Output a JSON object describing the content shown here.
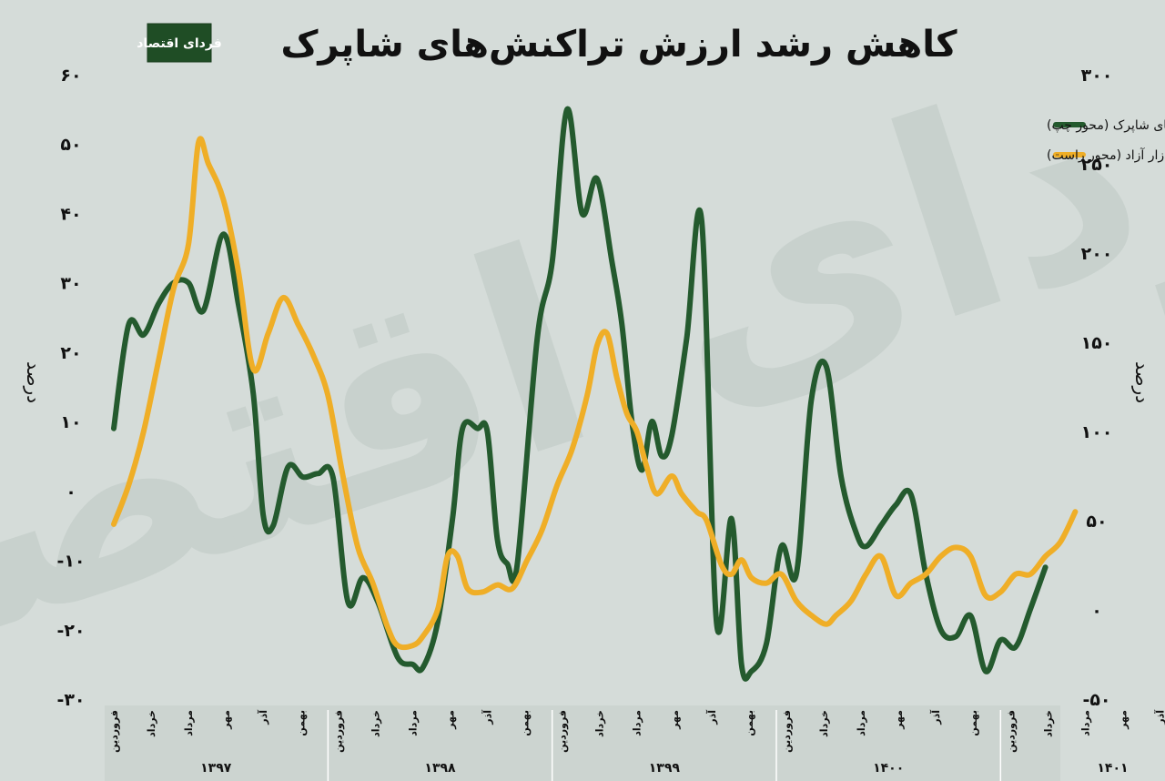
{
  "logo": {
    "text": "فردای اقتصاد"
  },
  "watermark": {
    "text": "فردای اقتصاد"
  },
  "chart_data": {
    "type": "line",
    "title": "کاهش رشد ارزش تراکنش‌های شاپرک",
    "ylabel_left": "درصد",
    "ylabel_right": "درصد",
    "left_axis": {
      "min": -30,
      "max": 60,
      "ticks": [
        60,
        50,
        40,
        30,
        20,
        10,
        0,
        -10,
        -20,
        -30
      ],
      "tick_labels": [
        "۶۰",
        "۵۰",
        "۴۰",
        "۳۰",
        "۲۰",
        "۱۰",
        "۰",
        "-۱۰",
        "-۲۰",
        "-۳۰"
      ]
    },
    "right_axis": {
      "min": -50,
      "max": 300,
      "ticks": [
        300,
        250,
        200,
        150,
        100,
        50,
        0,
        -50
      ],
      "tick_labels": [
        "۳۰۰",
        "۲۵۰",
        "۲۰۰",
        "۱۵۰",
        "۱۰۰",
        "۵۰",
        "۰",
        "-۵۰"
      ]
    },
    "x": [
      0,
      1,
      2,
      3,
      4,
      5,
      6,
      7,
      8,
      9,
      10,
      11,
      12,
      13,
      14,
      15,
      16,
      17,
      18,
      19,
      20,
      21,
      22,
      23,
      24,
      25,
      26,
      27,
      28,
      29,
      30,
      31,
      32,
      33,
      34,
      35,
      36,
      37,
      38,
      39,
      40,
      41,
      42,
      43,
      44,
      45,
      46,
      47,
      48,
      49,
      50,
      51,
      52,
      53,
      54,
      55,
      56,
      57,
      58,
      59,
      60,
      61,
      62,
      63,
      64,
      65,
      66,
      67,
      68,
      69,
      70,
      71,
      72,
      73,
      74,
      75,
      76,
      77,
      78,
      79,
      80,
      81,
      82,
      83,
      84,
      85,
      86,
      87,
      88,
      89,
      90,
      91,
      92,
      93,
      94,
      95,
      96,
      97,
      98,
      99,
      100,
      101,
      102,
      103,
      104,
      105,
      106,
      107,
      108,
      109,
      110,
      111,
      112,
      113,
      114,
      115,
      116,
      117,
      118,
      119,
      120,
      121,
      122,
      123,
      124,
      125,
      126,
      127,
      128,
      129,
      130,
      131,
      132,
      133,
      134,
      135,
      136,
      137,
      138,
      139,
      140,
      141,
      142,
      143,
      144,
      145,
      146,
      147,
      148,
      149,
      150,
      151,
      152,
      153,
      154,
      155,
      156,
      157,
      158,
      159,
      160,
      161,
      162,
      163,
      164,
      165,
      166,
      167,
      168,
      169,
      170,
      171,
      172,
      173,
      174,
      175,
      176,
      177,
      178,
      179,
      180,
      181,
      182,
      183,
      184,
      185,
      186,
      187,
      188,
      189,
      190,
      191,
      192,
      193,
      194,
      195,
      196,
      197,
      198,
      199,
      200,
      201,
      202,
      203,
      204,
      205,
      206,
      207,
      208,
      209,
      210,
      211,
      212,
      213,
      214,
      215,
      216,
      217,
      218,
      219
    ],
    "months": [
      {
        "label": "فروردین",
        "x": 0
      },
      {
        "label": "خرداد",
        "x": 7.5
      },
      {
        "label": "مرداد",
        "x": 15
      },
      {
        "label": "مهر",
        "x": 22.5
      },
      {
        "label": "آذر",
        "x": 30
      },
      {
        "label": "بهمن",
        "x": 37.5
      },
      {
        "label": "فروردین",
        "x": 45
      },
      {
        "label": "خرداد",
        "x": 52.5
      },
      {
        "label": "مرداد",
        "x": 60
      },
      {
        "label": "مهر",
        "x": 67.5
      },
      {
        "label": "آذر",
        "x": 75
      },
      {
        "label": "بهمن",
        "x": 82.5
      },
      {
        "label": "فروردین",
        "x": 90
      },
      {
        "label": "خرداد",
        "x": 97.5
      },
      {
        "label": "مرداد",
        "x": 105
      },
      {
        "label": "مهر",
        "x": 112.5
      },
      {
        "label": "آذر",
        "x": 120
      },
      {
        "label": "بهمن",
        "x": 127.5
      },
      {
        "label": "فروردین",
        "x": 135
      },
      {
        "label": "خرداد",
        "x": 142.5
      },
      {
        "label": "مرداد",
        "x": 150
      },
      {
        "label": "مهر",
        "x": 157.5
      },
      {
        "label": "آذر",
        "x": 165
      },
      {
        "label": "بهمن",
        "x": 172.5
      },
      {
        "label": "فروردین",
        "x": 180
      },
      {
        "label": "خرداد",
        "x": 187.5
      },
      {
        "label": "مرداد",
        "x": 195
      },
      {
        "label": "مهر",
        "x": 202.5
      },
      {
        "label": "آذر",
        "x": 210
      }
    ],
    "years": [
      {
        "label": "۱۳۹۷",
        "start": -2,
        "end": 43
      },
      {
        "label": "۱۳۹۸",
        "start": 43,
        "end": 88
      },
      {
        "label": "۱۳۹۹",
        "start": 88,
        "end": 133
      },
      {
        "label": "۱۴۰۰",
        "start": 133,
        "end": 178
      },
      {
        "label": "۱۴۰۱",
        "start": 178,
        "end": 223
      }
    ],
    "legend_position": "top-right",
    "grid": false,
    "series": [
      {
        "name": "رشد سالانه ارزش حقیقی تراکنش‌های شاپرک (محور چپ)",
        "axis": "left",
        "color": "#245a2e",
        "points": [
          [
            0,
            9
          ],
          [
            3,
            24
          ],
          [
            6,
            22.5
          ],
          [
            9,
            27
          ],
          [
            12,
            30
          ],
          [
            15,
            30
          ],
          [
            18,
            26
          ],
          [
            22,
            37
          ],
          [
            25,
            27
          ],
          [
            28,
            14
          ],
          [
            30,
            -3.5
          ],
          [
            32,
            -5
          ],
          [
            35,
            3.5
          ],
          [
            38,
            2
          ],
          [
            41,
            2.5
          ],
          [
            44,
            2
          ],
          [
            47,
            -16
          ],
          [
            50,
            -12.5
          ],
          [
            53,
            -16
          ],
          [
            57,
            -24
          ],
          [
            60,
            -25
          ],
          [
            62,
            -25.5
          ],
          [
            65,
            -19
          ],
          [
            68,
            -4
          ],
          [
            70,
            9
          ],
          [
            73,
            9
          ],
          [
            75,
            8.5
          ],
          [
            77,
            -7
          ],
          [
            79,
            -10.5
          ],
          [
            81,
            -10.5
          ],
          [
            85,
            22
          ],
          [
            88,
            33
          ],
          [
            91,
            55
          ],
          [
            94,
            40
          ],
          [
            97,
            45
          ],
          [
            100,
            33
          ],
          [
            102,
            24
          ],
          [
            104,
            10
          ],
          [
            106,
            3
          ],
          [
            108,
            10
          ],
          [
            110,
            5
          ],
          [
            112,
            8
          ],
          [
            115,
            22
          ],
          [
            118,
            39
          ],
          [
            121,
            -19
          ],
          [
            124,
            -4
          ],
          [
            126,
            -25
          ],
          [
            128,
            -26
          ],
          [
            131,
            -22
          ],
          [
            134,
            -8
          ],
          [
            137,
            -12
          ],
          [
            140,
            13
          ],
          [
            143,
            18
          ],
          [
            146,
            2
          ],
          [
            149,
            -6
          ],
          [
            151,
            -8
          ],
          [
            154,
            -5
          ],
          [
            157,
            -2
          ],
          [
            160,
            -0.5
          ],
          [
            163,
            -12
          ],
          [
            166,
            -20
          ],
          [
            169,
            -21
          ],
          [
            172,
            -18
          ],
          [
            175,
            -26
          ],
          [
            178,
            -21.5
          ],
          [
            181,
            -22.5
          ],
          [
            184,
            -17
          ],
          [
            187,
            -11
          ]
        ]
      },
      {
        "name": "رشد سالانه دلار بازار آزاد (محور راست)",
        "axis": "right",
        "color": "#efae27",
        "points": [
          [
            0,
            48
          ],
          [
            3,
            70
          ],
          [
            6,
            100
          ],
          [
            9,
            140
          ],
          [
            12,
            180
          ],
          [
            15,
            205
          ],
          [
            17,
            262
          ],
          [
            19,
            250
          ],
          [
            22,
            230
          ],
          [
            25,
            190
          ],
          [
            28,
            135
          ],
          [
            31,
            155
          ],
          [
            34,
            175
          ],
          [
            37,
            160
          ],
          [
            40,
            143
          ],
          [
            43,
            120
          ],
          [
            46,
            75
          ],
          [
            49,
            35
          ],
          [
            52,
            15
          ],
          [
            55,
            -10
          ],
          [
            57,
            -20
          ],
          [
            60,
            -20
          ],
          [
            62,
            -15
          ],
          [
            65,
            0
          ],
          [
            67,
            30
          ],
          [
            69,
            30
          ],
          [
            71,
            12
          ],
          [
            74,
            10
          ],
          [
            77,
            14
          ],
          [
            80,
            12
          ],
          [
            83,
            28
          ],
          [
            86,
            45
          ],
          [
            89,
            70
          ],
          [
            92,
            90
          ],
          [
            95,
            120
          ],
          [
            97,
            148
          ],
          [
            99,
            155
          ],
          [
            101,
            130
          ],
          [
            103,
            110
          ],
          [
            105,
            100
          ],
          [
            107,
            80
          ],
          [
            109,
            65
          ],
          [
            112,
            75
          ],
          [
            114,
            65
          ],
          [
            117,
            55
          ],
          [
            119,
            50
          ],
          [
            122,
            25
          ],
          [
            124,
            20
          ],
          [
            126,
            28
          ],
          [
            128,
            18
          ],
          [
            131,
            15
          ],
          [
            134,
            20
          ],
          [
            137,
            5
          ],
          [
            140,
            -3
          ],
          [
            143,
            -8
          ],
          [
            145,
            -3
          ],
          [
            148,
            5
          ],
          [
            151,
            20
          ],
          [
            154,
            30
          ],
          [
            157,
            8
          ],
          [
            160,
            15
          ],
          [
            163,
            20
          ],
          [
            166,
            30
          ],
          [
            169,
            35
          ],
          [
            172,
            30
          ],
          [
            175,
            8
          ],
          [
            178,
            10
          ],
          [
            181,
            20
          ],
          [
            184,
            20
          ],
          [
            187,
            30
          ],
          [
            190,
            38
          ],
          [
            193,
            55
          ]
        ]
      }
    ]
  }
}
